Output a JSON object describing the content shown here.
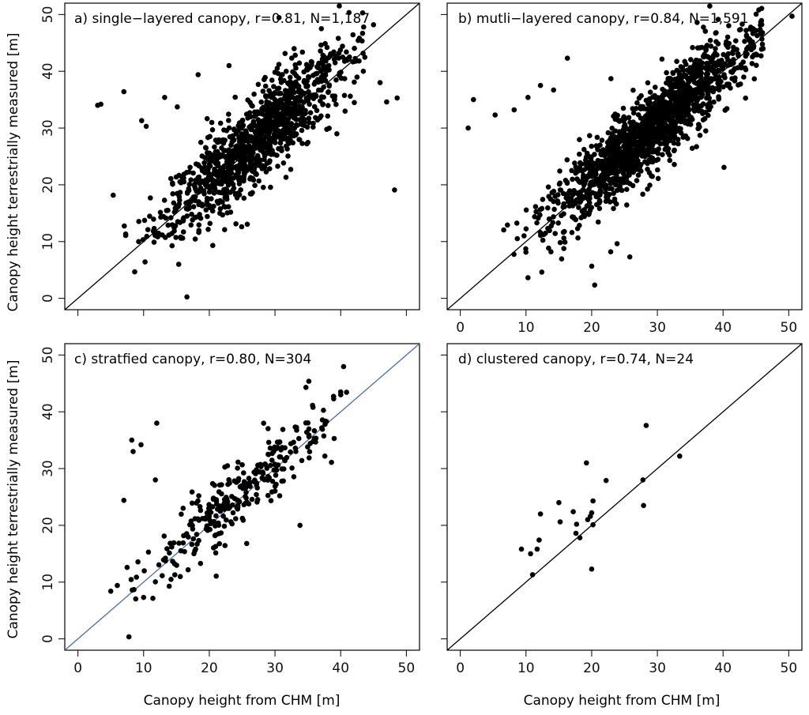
{
  "figure": {
    "ylabel": "Canopy height terrestrially measured [m]",
    "xlabel": "Canopy height from CHM [m]"
  },
  "chart_data": [
    {
      "type": "scatter",
      "title": "a) single−layered canopy, r=0.81, N=1,187",
      "xlabel": "",
      "ylabel": "Canopy height terrestrially measured [m]",
      "xlim": [
        -2,
        52
      ],
      "ylim": [
        -2,
        52
      ],
      "xticks": [
        0,
        10,
        20,
        30,
        40,
        50
      ],
      "yticks": [
        0,
        10,
        20,
        30,
        40,
        50
      ],
      "show_xtick_labels": false,
      "show_ytick_labels": true,
      "reference_line": "1:1",
      "line_color": "#000000",
      "sample": {
        "n": 1187,
        "xmin": 3,
        "xmax": 44,
        "xmean": 27,
        "xsd": 7,
        "noise_sd": 3.6,
        "outlier_rate": 0.03,
        "seed": 11
      },
      "outliers": [
        [
          3,
          34
        ],
        [
          3.5,
          34.2
        ],
        [
          7,
          36.4
        ],
        [
          9.7,
          31.3
        ],
        [
          10.4,
          30.3
        ],
        [
          13.2,
          35.4
        ],
        [
          18.3,
          39.4
        ],
        [
          23,
          41
        ],
        [
          43.5,
          47.8
        ],
        [
          45,
          48.2
        ],
        [
          47,
          34.6
        ],
        [
          48.6,
          35.3
        ],
        [
          48.2,
          19.1
        ],
        [
          46,
          38
        ]
      ]
    },
    {
      "type": "scatter",
      "title": "b) mutli−layered canopy, r=0.84, N=1,591",
      "xlabel": "",
      "ylabel": "",
      "xlim": [
        -2,
        52
      ],
      "ylim": [
        -2,
        52
      ],
      "xticks": [
        0,
        10,
        20,
        30,
        40,
        50
      ],
      "yticks": [
        0,
        10,
        20,
        30,
        40,
        50
      ],
      "show_xtick_labels": true,
      "show_ytick_labels": false,
      "reference_line": "1:1",
      "line_color": "#000000",
      "sample": {
        "n": 1591,
        "xmin": 5,
        "xmax": 46,
        "xmean": 29,
        "xsd": 7.5,
        "noise_sd": 3.2,
        "outlier_rate": 0.025,
        "seed": 23
      },
      "outliers": [
        [
          1.2,
          30
        ],
        [
          2,
          35
        ],
        [
          5.3,
          32.3
        ],
        [
          8.2,
          33.2
        ],
        [
          10.3,
          35.4
        ],
        [
          12.2,
          37.5
        ],
        [
          14.2,
          36.7
        ],
        [
          16.3,
          42.3
        ],
        [
          13.8,
          8.2
        ],
        [
          22.9,
          8.2
        ],
        [
          25.8,
          7.3
        ],
        [
          50.5,
          49.7
        ],
        [
          44.3,
          43.8
        ],
        [
          46.1,
          44
        ]
      ]
    },
    {
      "type": "scatter",
      "title": "c) stratfied canopy, r=0.80, N=304",
      "xlabel": "Canopy height from CHM [m]",
      "ylabel": "Canopy height terrestrially measured [m]",
      "xlim": [
        -2,
        52
      ],
      "ylim": [
        -2,
        52
      ],
      "xticks": [
        0,
        10,
        20,
        30,
        40,
        50
      ],
      "yticks": [
        0,
        10,
        20,
        30,
        40,
        50
      ],
      "show_xtick_labels": true,
      "show_ytick_labels": true,
      "reference_line": "1:1",
      "line_color": "#4a6fa5",
      "sample": {
        "n": 304,
        "xmin": 5,
        "xmax": 41,
        "xmean": 24,
        "xsd": 7.5,
        "noise_sd": 3.0,
        "outlier_rate": 0.02,
        "seed": 37
      },
      "outliers": [
        [
          7,
          24.4
        ],
        [
          8.2,
          35
        ],
        [
          8.4,
          33
        ],
        [
          9.6,
          34.2
        ],
        [
          12,
          38
        ],
        [
          11.8,
          28
        ],
        [
          5,
          8.4
        ],
        [
          6,
          9.4
        ],
        [
          10,
          7.3
        ],
        [
          33.8,
          20
        ],
        [
          25.7,
          16.8
        ],
        [
          38.6,
          31.1
        ],
        [
          40,
          43.5
        ],
        [
          34.7,
          44.3
        ]
      ]
    },
    {
      "type": "scatter",
      "title": "d) clustered canopy, r=0.74, N=24",
      "xlabel": "Canopy height from CHM [m]",
      "ylabel": "",
      "xlim": [
        -2,
        52
      ],
      "ylim": [
        -2,
        52
      ],
      "xticks": [
        0,
        10,
        20,
        30,
        40,
        50
      ],
      "yticks": [
        0,
        10,
        20,
        30,
        40,
        50
      ],
      "show_xtick_labels": true,
      "show_ytick_labels": false,
      "reference_line": "1:1",
      "line_color": "#000000",
      "points": [
        [
          9.3,
          15.8
        ],
        [
          10.7,
          15
        ],
        [
          11,
          11.3
        ],
        [
          11.7,
          15.8
        ],
        [
          12,
          17.4
        ],
        [
          12.2,
          22
        ],
        [
          15,
          24
        ],
        [
          15.2,
          20.6
        ],
        [
          17.2,
          22.4
        ],
        [
          17.7,
          20.2
        ],
        [
          17.6,
          18.6
        ],
        [
          18.2,
          17.8
        ],
        [
          19.2,
          31
        ],
        [
          19.4,
          21
        ],
        [
          19.8,
          21.6
        ],
        [
          20,
          22.2
        ],
        [
          20.2,
          24.3
        ],
        [
          20.2,
          20.1
        ],
        [
          20,
          12.3
        ],
        [
          22.2,
          27.9
        ],
        [
          27.8,
          28
        ],
        [
          27.9,
          23.5
        ],
        [
          28.3,
          37.6
        ],
        [
          33.4,
          32.2
        ]
      ]
    }
  ]
}
